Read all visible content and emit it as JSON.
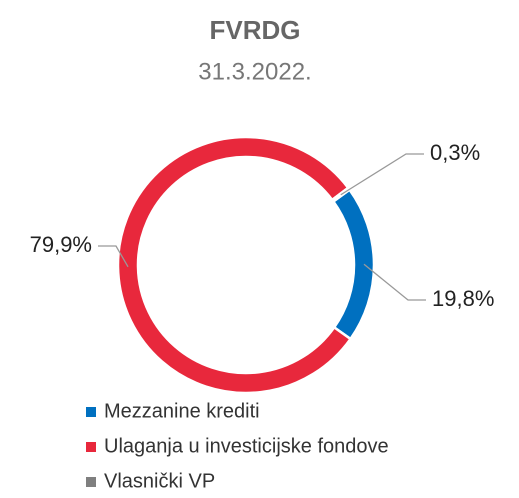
{
  "chart_data": {
    "type": "donut",
    "title": "FVRDG",
    "subtitle": "31.3.2022.",
    "categories": [
      "Mezzanine krediti",
      "Ulaganja u investicijske fondove",
      "Vlasnički VP"
    ],
    "values": [
      19.8,
      79.9,
      0.3
    ],
    "value_labels": [
      "19,8%",
      "79,9%",
      "0,3%"
    ],
    "colors": [
      "#0070c0",
      "#e8283c",
      "#7f7f7f"
    ],
    "legend": "bottom"
  }
}
